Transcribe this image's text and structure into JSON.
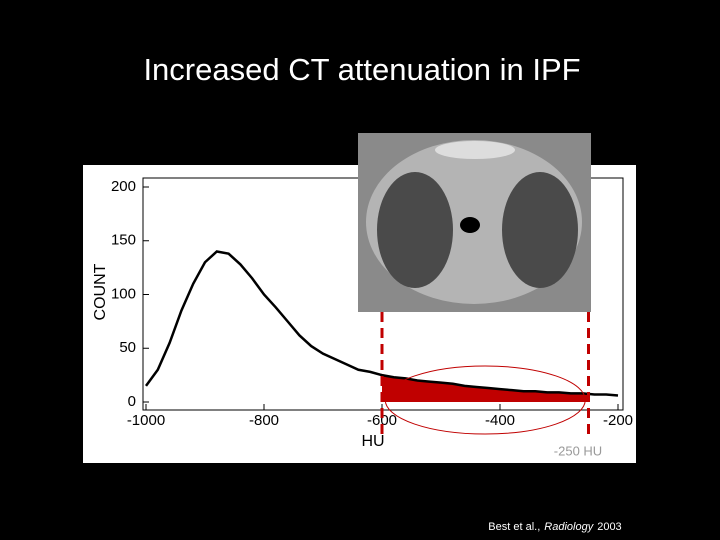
{
  "chart_data": {
    "type": "line",
    "title": "Increased CT attenuation in IPF",
    "x_label": "HU",
    "y_label": "COUNT",
    "x": [
      -1000,
      -980,
      -960,
      -940,
      -920,
      -900,
      -880,
      -860,
      -840,
      -820,
      -800,
      -780,
      -760,
      -740,
      -720,
      -700,
      -680,
      -660,
      -640,
      -620,
      -600,
      -580,
      -560,
      -540,
      -520,
      -500,
      -480,
      -460,
      -440,
      -420,
      -400,
      -380,
      -360,
      -340,
      -320,
      -300,
      -280,
      -260,
      -240,
      -220,
      -200
    ],
    "values": [
      15,
      30,
      55,
      85,
      110,
      130,
      140,
      138,
      128,
      115,
      100,
      88,
      75,
      62,
      52,
      45,
      40,
      35,
      30,
      28,
      25,
      23,
      22,
      20,
      19,
      18,
      17,
      15,
      14,
      13,
      12,
      11,
      10,
      10,
      9,
      9,
      8,
      8,
      7,
      7,
      6
    ],
    "color": "#000000",
    "highlight_x": [
      -600,
      -250
    ],
    "highlight_color": "#c00000",
    "highlight_label": "-250 HU",
    "xlim": [
      -1000,
      -200
    ],
    "xticks": [
      -1000,
      -800,
      -600,
      -400,
      -200
    ],
    "ylim": [
      0,
      200
    ],
    "yticks": [
      0,
      50,
      100,
      150,
      200
    ]
  },
  "citation": {
    "authors": "Best et al.,",
    "journal": "Radiology",
    "year": "2003"
  }
}
